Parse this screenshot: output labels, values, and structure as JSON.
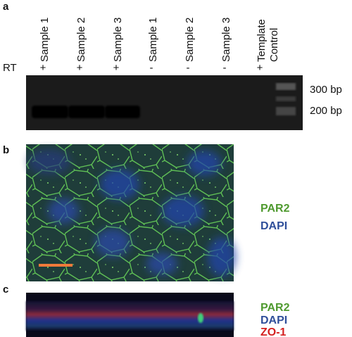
{
  "panel_a": {
    "label": "a",
    "rt_label": "RT",
    "lanes": [
      {
        "label": "Sample 1",
        "rt": "+"
      },
      {
        "label": "Sample 2",
        "rt": "+"
      },
      {
        "label": "Sample 3",
        "rt": "+"
      },
      {
        "label": "Sample 1",
        "rt": "-"
      },
      {
        "label": "Sample 2",
        "rt": "-"
      },
      {
        "label": "Sample 3",
        "rt": "-"
      },
      {
        "label": [
          "Template",
          "Control"
        ],
        "rt": "+"
      }
    ],
    "markers": [
      "300 bp",
      "200 bp"
    ]
  },
  "panel_b": {
    "label": "b",
    "channels": [
      "PAR2",
      "DAPI"
    ]
  },
  "panel_c": {
    "label": "c",
    "channels": [
      "PAR2",
      "DAPI",
      "ZO-1"
    ]
  }
}
